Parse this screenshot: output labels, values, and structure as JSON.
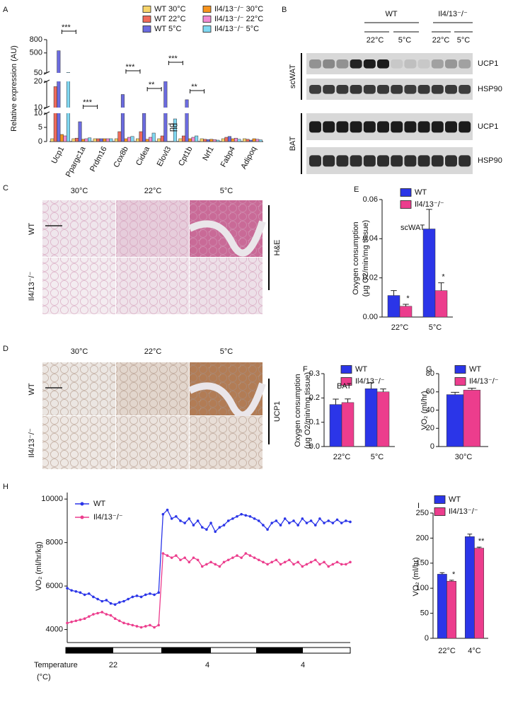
{
  "chart_data": [
    {
      "type": "bar",
      "panel": "A",
      "ylabel": [
        "Relative expression (AU)"
      ],
      "categories": [
        "Ucp1",
        "Ppargc1a",
        "Prdm16",
        "Cox8b",
        "Cidea",
        "Elovl3",
        "Cpt1b",
        "Nrf1",
        "Fabp4",
        "Adipoq"
      ],
      "series": [
        {
          "name": "WT 30°C",
          "color": "#f7d46a",
          "values": [
            1,
            1,
            1,
            1,
            1,
            1,
            1,
            1,
            1,
            1
          ]
        },
        {
          "name": "WT 22°C",
          "color": "#f06a5a",
          "values": [
            18,
            1.2,
            1,
            3.5,
            3.5,
            2,
            2,
            0.8,
            1.5,
            0.8
          ]
        },
        {
          "name": "WT 5°C",
          "color": "#6b6be0",
          "values": [
            550,
            7,
            1,
            15,
            10,
            20,
            13,
            0.7,
            1.8,
            0.5
          ]
        },
        {
          "name": "Il4/13⁻/⁻ 30°C",
          "color": "#f7941d",
          "values": [
            2.5,
            0.8,
            1,
            1,
            0.8,
            null,
            1,
            0.8,
            1,
            1
          ]
        },
        {
          "name": "Il4/13⁻/⁻ 22°C",
          "color": "#f08ad2",
          "values": [
            2,
            1,
            1,
            1.5,
            1.5,
            null,
            1.5,
            0.7,
            1.2,
            0.8
          ]
        },
        {
          "name": "Il4/13⁻/⁻ 5°C",
          "color": "#80d8f2",
          "values": [
            60,
            1.3,
            1,
            1.8,
            3,
            8,
            2,
            0.5,
            0.8,
            0.6
          ]
        }
      ],
      "y_segments": [
        {
          "ylim": [
            0,
            10
          ],
          "yticks": [
            0,
            5,
            10
          ]
        },
        {
          "ylim": [
            10,
            20
          ],
          "yticks": [
            10,
            20
          ]
        },
        {
          "ylim": [
            50,
            800
          ],
          "yticks": [
            50,
            500,
            800
          ]
        }
      ],
      "annotations": [
        {
          "text": "***"
        },
        {
          "text": "***"
        },
        {
          "text": "***"
        },
        {
          "text": "**"
        },
        {
          "text": "***"
        },
        {
          "text": "**"
        },
        {
          "text": "nd"
        },
        {
          "text": "nd"
        }
      ]
    },
    {
      "type": "bar",
      "panel": "E",
      "ylabel": [
        "Oxygen consumption",
        "(µg O2/min/mg tissue)"
      ],
      "categories": [
        "22°C",
        "5°C"
      ],
      "series": [
        {
          "name": "WT",
          "color": "#2b35e8",
          "values": [
            0.011,
            0.045
          ],
          "errors": [
            0.0025,
            0.01
          ]
        },
        {
          "name": "Il4/13⁻/⁻",
          "color": "#ec3d8d",
          "values": [
            0.0055,
            0.0135
          ],
          "errors": [
            0.001,
            0.004
          ]
        }
      ],
      "ylim": [
        0,
        0.06
      ],
      "yticks": [
        {
          "value": 0,
          "label": "0.00"
        },
        0.02,
        0.04,
        0.06
      ],
      "annotations": [
        {
          "text": "scWAT"
        },
        {
          "text": "*"
        },
        {
          "text": "*"
        }
      ]
    },
    {
      "type": "bar",
      "panel": "F",
      "ylabel": [
        "Oxygen consumption",
        "(µg O2/min/mg tissue)"
      ],
      "categories": [
        "22°C",
        "5°C"
      ],
      "series": [
        {
          "name": "WT",
          "color": "#2b35e8",
          "values": [
            0.173,
            0.238
          ],
          "errors": [
            0.022,
            0.025
          ]
        },
        {
          "name": "Il4/13⁻/⁻",
          "color": "#ec3d8d",
          "values": [
            0.181,
            0.225
          ],
          "errors": [
            0.015,
            0.012
          ]
        }
      ],
      "ylim": [
        0,
        0.3
      ],
      "yticks": [
        {
          "value": 0,
          "label": "0.0"
        },
        0.1,
        0.2,
        0.3
      ],
      "annotations": [
        {
          "text": "BAT"
        }
      ]
    },
    {
      "type": "bar",
      "panel": "G",
      "ylabel": [
        "VO₂ (ml/hr)"
      ],
      "categories": [
        "30°C"
      ],
      "series": [
        {
          "name": "WT",
          "color": "#2b35e8",
          "values": [
            57
          ],
          "errors": [
            2.5
          ]
        },
        {
          "name": "Il4/13⁻/⁻",
          "color": "#ec3d8d",
          "values": [
            62
          ],
          "errors": [
            2
          ]
        }
      ],
      "ylim": [
        0,
        80
      ],
      "yticks": [
        0,
        20,
        40,
        60,
        80
      ],
      "annotations": []
    },
    {
      "type": "line",
      "panel": "H",
      "ylabel": [
        "VO₂ (ml/hr/kg)"
      ],
      "xlabel": [
        "Temperature",
        "(°C)"
      ],
      "temperature_labels": [
        22,
        4,
        4
      ],
      "series": [
        {
          "name": "WT",
          "color": "#2b35e8",
          "values": [
            5900,
            5800,
            5750,
            5700,
            5600,
            5650,
            5500,
            5400,
            5300,
            5350,
            5200,
            5150,
            5250,
            5300,
            5400,
            5500,
            5550,
            5500,
            5600,
            5650,
            5600,
            5700,
            9300,
            9500,
            9100,
            9200,
            9000,
            8900,
            9100,
            8800,
            9000,
            8700,
            8600,
            8900,
            8500,
            8700,
            8800,
            9000,
            9100,
            9200,
            9300,
            9250,
            9200,
            9100,
            9000,
            8800,
            8600,
            8900,
            9000,
            8800,
            9100,
            8900,
            9000,
            8800,
            9100,
            8900,
            9000,
            8800,
            9100,
            8900,
            9000,
            8900,
            9050,
            8900,
            9000,
            8950
          ]
        },
        {
          "name": "Il4/13⁻/⁻",
          "color": "#ec3d8d",
          "values": [
            4300,
            4350,
            4400,
            4450,
            4500,
            4600,
            4700,
            4750,
            4800,
            4700,
            4650,
            4500,
            4400,
            4300,
            4250,
            4200,
            4150,
            4100,
            4150,
            4200,
            4100,
            4200,
            7500,
            7400,
            7300,
            7400,
            7200,
            7300,
            7100,
            7300,
            7200,
            6900,
            7000,
            7100,
            7000,
            6900,
            7100,
            7200,
            7300,
            7400,
            7300,
            7500,
            7400,
            7300,
            7200,
            7100,
            7000,
            7100,
            7200,
            7000,
            7100,
            7200,
            7000,
            7100,
            6900,
            7000,
            7100,
            7200,
            7000,
            7100,
            6900,
            7000,
            7100,
            7000,
            7000,
            7100
          ]
        }
      ],
      "ylim": [
        3400,
        10300
      ],
      "yticks": [
        4000,
        6000,
        8000,
        10000
      ]
    },
    {
      "type": "bar",
      "panel": "I",
      "ylabel": [
        "VO₂ (ml/hr)"
      ],
      "categories": [
        "22°C",
        "4°C"
      ],
      "series": [
        {
          "name": "WT",
          "color": "#2b35e8",
          "values": [
            128,
            203
          ],
          "errors": [
            3,
            5
          ]
        },
        {
          "name": "Il4/13⁻/⁻",
          "color": "#ec3d8d",
          "values": [
            114,
            180
          ],
          "errors": [
            2,
            2
          ]
        }
      ],
      "ylim": [
        0,
        250
      ],
      "yticks": [
        0,
        50,
        100,
        150,
        200,
        250
      ],
      "annotations": [
        {
          "text": "*"
        },
        {
          "text": "**"
        }
      ]
    }
  ],
  "blot": {
    "panel": "B",
    "groups": [
      "WT",
      "Il4/13⁻/⁻"
    ],
    "temperatures": [
      "22°C",
      "5°C",
      "22°C",
      "5°C"
    ],
    "tissues": [
      "scWAT",
      "BAT"
    ],
    "proteins": [
      "UCP1",
      "HSP90",
      "UCP1",
      "HSP90"
    ]
  },
  "histology": [
    {
      "panel": "C",
      "columns": [
        "30°C",
        "22°C",
        "5°C"
      ],
      "rows": [
        "WT",
        "Il4/13⁻/⁻"
      ],
      "stain": "H&E"
    },
    {
      "panel": "D",
      "columns": [
        "30°C",
        "22°C",
        "5°C"
      ],
      "rows": [
        "WT",
        "Il4/13⁻/⁻"
      ],
      "stain": "UCP1"
    }
  ]
}
